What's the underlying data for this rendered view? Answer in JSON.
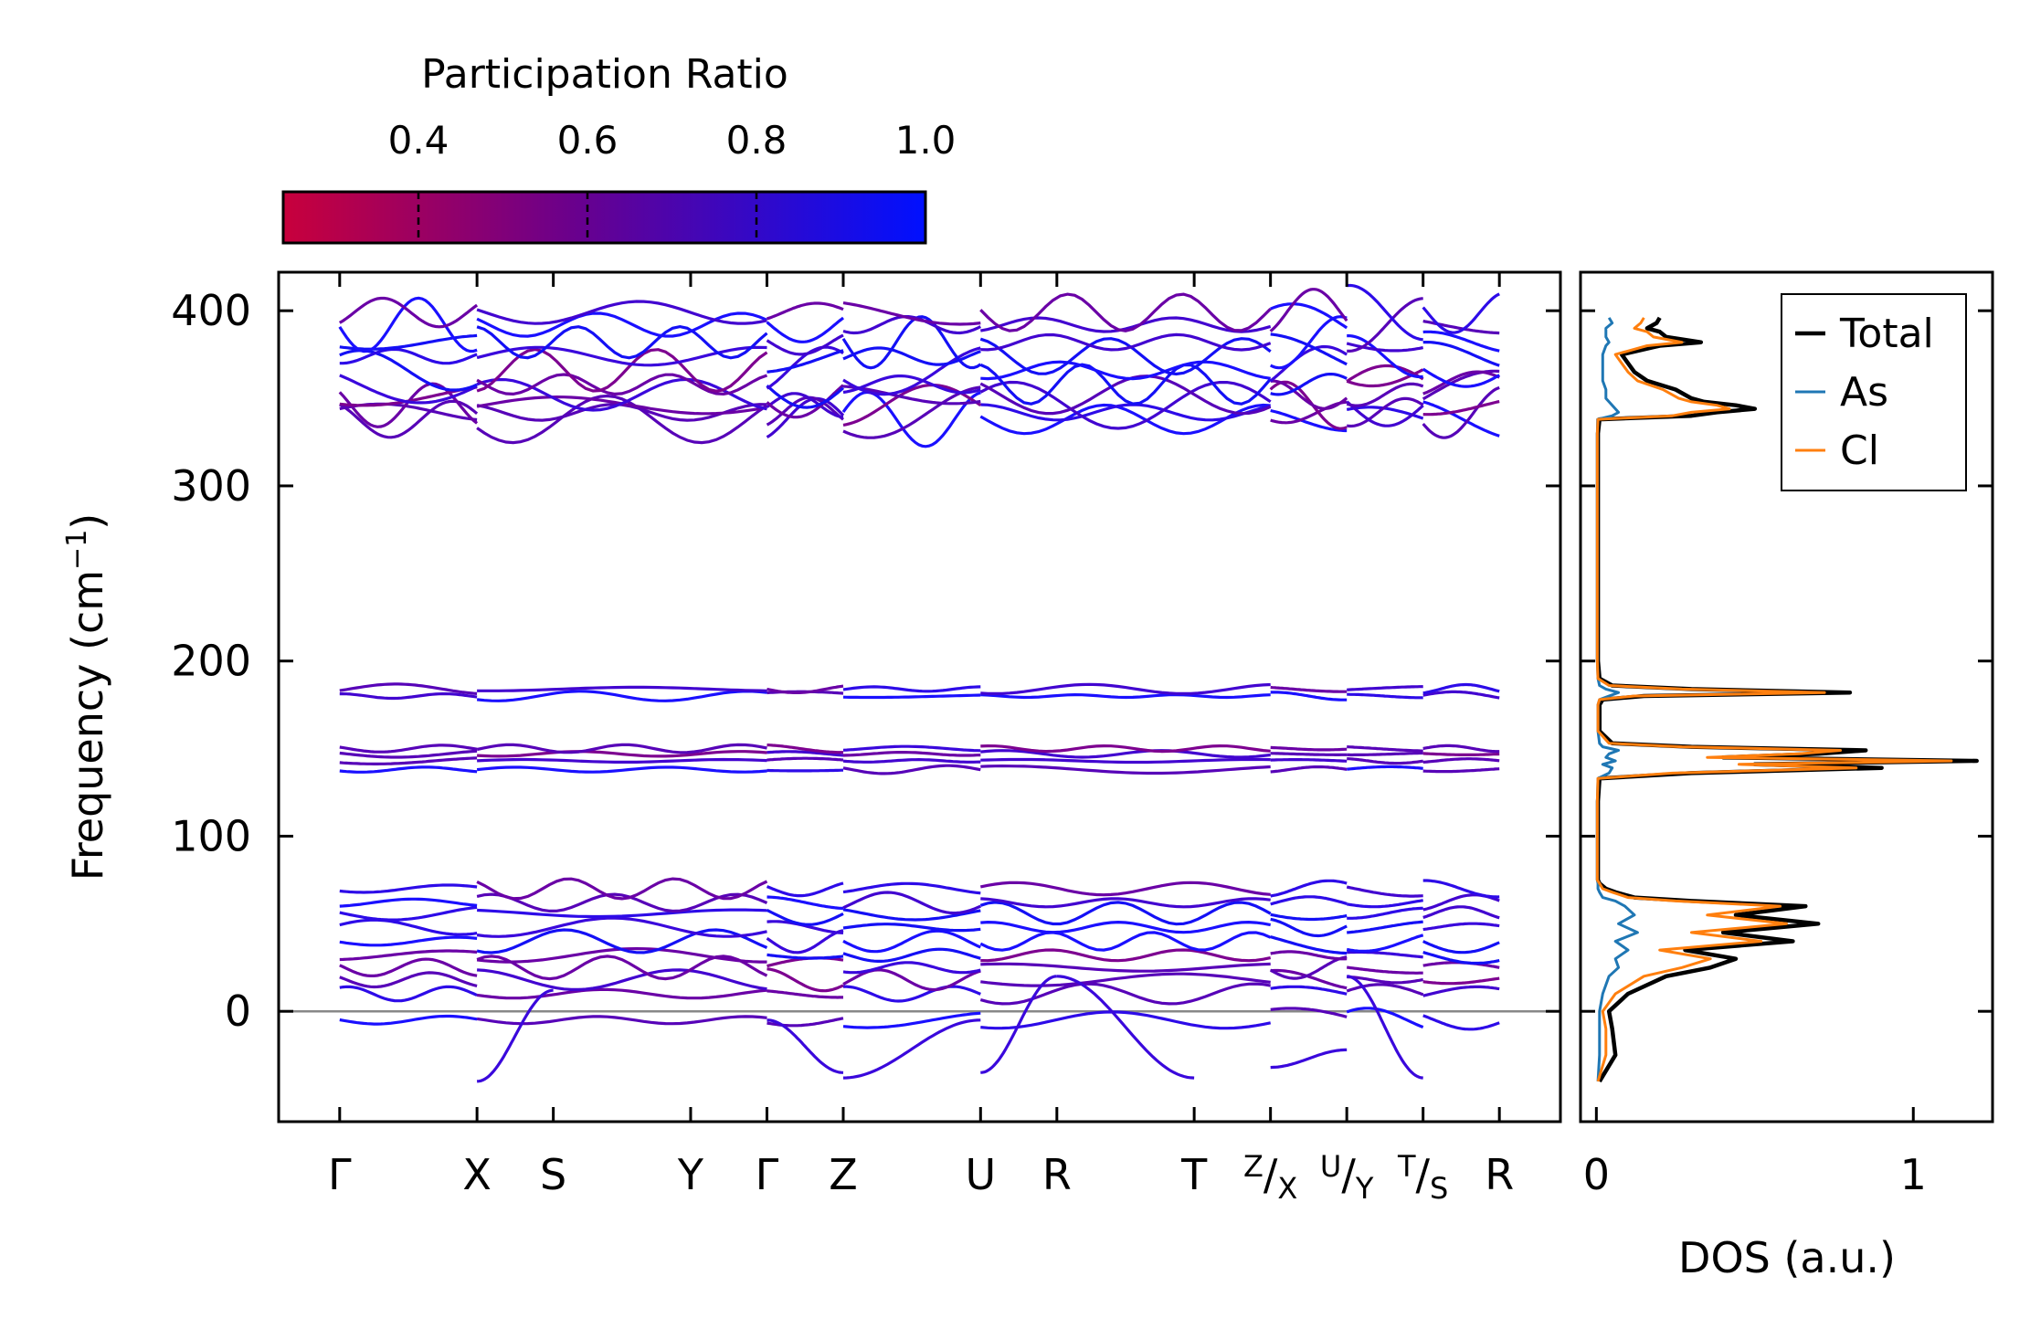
{
  "chart_data": [
    {
      "type": "colorbar",
      "title": "Participation Ratio",
      "range": [
        0.24,
        1.0
      ],
      "tick_values": [
        0.4,
        0.6,
        0.8,
        1.0
      ],
      "tick_labels": [
        "0.4",
        "0.6",
        "0.8",
        "1.0"
      ],
      "colors": {
        "low": "#c8003c",
        "mid": "#6a008c",
        "high": "#0010ff"
      }
    },
    {
      "type": "line",
      "title": "",
      "ylabel_main": "Frequency (cm",
      "ylabel_sup": "−1",
      "ylabel_close": ")",
      "ylim": [
        -63,
        422
      ],
      "y_ticks": [
        0,
        100,
        200,
        300,
        400
      ],
      "y_tick_labels": [
        "0",
        "100",
        "200",
        "300",
        "400"
      ],
      "xlim": [
        -0.8,
        16.0
      ],
      "k_points": [
        {
          "x": 0.0,
          "label": "Γ"
        },
        {
          "x": 1.8,
          "label": "X"
        },
        {
          "x": 2.8,
          "label": "S"
        },
        {
          "x": 4.6,
          "label": "Y"
        },
        {
          "x": 5.6,
          "label": "Γ"
        },
        {
          "x": 6.6,
          "label": "Z"
        },
        {
          "x": 8.4,
          "label": "U"
        },
        {
          "x": 9.4,
          "label": "R"
        },
        {
          "x": 11.2,
          "label": "T"
        },
        {
          "x": 12.2,
          "label": ""
        },
        {
          "x": 13.2,
          "label": ""
        },
        {
          "x": 14.2,
          "label": ""
        },
        {
          "x": 15.2,
          "label": "R"
        }
      ],
      "compound_labels": [
        {
          "x": 12.2,
          "top": "Z",
          "bottom": "X"
        },
        {
          "x": 13.2,
          "top": "U",
          "bottom": "Y"
        },
        {
          "x": 14.2,
          "top": "T",
          "bottom": "S"
        }
      ],
      "segment_breaks": [
        1.8,
        5.6,
        6.6,
        8.4,
        12.2,
        13.2,
        14.2
      ],
      "zero_line": 0,
      "band_groups": {
        "low": [
          -5,
          10,
          18,
          25,
          32,
          40,
          48,
          56,
          62,
          70
        ],
        "mid": [
          138,
          143,
          147,
          150
        ],
        "mid_upper": [
          180,
          184
        ],
        "high": [
          338,
          342,
          346,
          352,
          358,
          366,
          374,
          382,
          392,
          399
        ]
      }
    },
    {
      "type": "line",
      "title": "",
      "xlabel": "DOS (a.u.)",
      "xlim": [
        -0.05,
        1.25
      ],
      "x_ticks": [
        0,
        1
      ],
      "x_tick_labels": [
        "0",
        "1"
      ],
      "ylim": [
        -63,
        422
      ],
      "legend_position": "top-right",
      "series": [
        {
          "name": "Total",
          "color": "#000000",
          "y": [
            -40,
            -25,
            -10,
            0,
            10,
            20,
            25,
            30,
            35,
            40,
            45,
            50,
            55,
            60,
            63,
            65,
            68,
            70,
            73,
            75,
            80,
            100,
            120,
            133,
            136,
            139,
            141,
            143,
            145,
            147,
            149,
            151,
            153,
            160,
            170,
            175,
            178,
            180,
            182,
            184,
            186,
            190,
            200,
            250,
            300,
            330,
            338,
            340,
            342,
            344,
            346,
            348,
            350,
            355,
            360,
            365,
            370,
            375,
            380,
            382,
            385,
            388,
            390,
            393,
            396
          ],
          "values": [
            0.01,
            0.06,
            0.05,
            0.04,
            0.1,
            0.22,
            0.36,
            0.44,
            0.28,
            0.62,
            0.4,
            0.7,
            0.44,
            0.66,
            0.3,
            0.12,
            0.06,
            0.03,
            0.01,
            0.005,
            0.005,
            0.005,
            0.005,
            0.01,
            0.3,
            0.9,
            0.5,
            1.2,
            0.4,
            0.7,
            0.85,
            0.3,
            0.05,
            0.01,
            0.01,
            0.01,
            0.02,
            0.15,
            0.8,
            0.3,
            0.05,
            0.01,
            0.005,
            0.005,
            0.005,
            0.005,
            0.01,
            0.3,
            0.38,
            0.5,
            0.44,
            0.34,
            0.3,
            0.25,
            0.16,
            0.12,
            0.1,
            0.08,
            0.2,
            0.33,
            0.22,
            0.2,
            0.16,
            0.19,
            0.2
          ]
        },
        {
          "name": "As",
          "color": "#1f77b4",
          "y": [
            -40,
            -25,
            -10,
            0,
            10,
            20,
            25,
            30,
            35,
            40,
            45,
            50,
            55,
            60,
            63,
            65,
            68,
            70,
            73,
            75,
            80,
            100,
            120,
            133,
            136,
            139,
            141,
            143,
            145,
            147,
            149,
            151,
            153,
            160,
            170,
            175,
            178,
            180,
            182,
            184,
            186,
            190,
            200,
            250,
            300,
            330,
            338,
            340,
            342,
            344,
            346,
            348,
            350,
            355,
            360,
            365,
            370,
            375,
            380,
            382,
            385,
            388,
            390,
            393,
            396
          ],
          "values": [
            0.005,
            0.01,
            0.01,
            0.01,
            0.02,
            0.04,
            0.07,
            0.06,
            0.1,
            0.06,
            0.13,
            0.07,
            0.12,
            0.09,
            0.06,
            0.02,
            0.01,
            0.005,
            0.005,
            0.003,
            0.003,
            0.003,
            0.003,
            0.005,
            0.04,
            0.05,
            0.02,
            0.06,
            0.03,
            0.04,
            0.07,
            0.02,
            0.01,
            0.005,
            0.005,
            0.005,
            0.01,
            0.04,
            0.07,
            0.03,
            0.01,
            0.005,
            0.003,
            0.003,
            0.003,
            0.003,
            0.004,
            0.05,
            0.07,
            0.06,
            0.05,
            0.04,
            0.03,
            0.03,
            0.02,
            0.02,
            0.02,
            0.02,
            0.03,
            0.04,
            0.03,
            0.03,
            0.03,
            0.05,
            0.04
          ]
        },
        {
          "name": "Cl",
          "color": "#ff7f0e",
          "y": [
            -40,
            -25,
            -10,
            0,
            10,
            20,
            25,
            30,
            35,
            40,
            45,
            50,
            55,
            60,
            63,
            65,
            68,
            70,
            73,
            75,
            80,
            100,
            120,
            133,
            136,
            139,
            141,
            143,
            145,
            147,
            149,
            151,
            153,
            160,
            170,
            175,
            178,
            180,
            182,
            184,
            186,
            190,
            200,
            250,
            300,
            330,
            338,
            340,
            342,
            344,
            346,
            348,
            350,
            355,
            360,
            365,
            370,
            375,
            380,
            382,
            385,
            388,
            390,
            393,
            396
          ],
          "values": [
            0.005,
            0.03,
            0.03,
            0.02,
            0.06,
            0.15,
            0.27,
            0.36,
            0.2,
            0.52,
            0.3,
            0.6,
            0.35,
            0.58,
            0.25,
            0.1,
            0.05,
            0.02,
            0.01,
            0.003,
            0.003,
            0.003,
            0.003,
            0.005,
            0.24,
            0.82,
            0.45,
            1.12,
            0.35,
            0.64,
            0.77,
            0.27,
            0.04,
            0.005,
            0.005,
            0.005,
            0.01,
            0.12,
            0.72,
            0.27,
            0.04,
            0.005,
            0.003,
            0.003,
            0.003,
            0.003,
            0.005,
            0.24,
            0.3,
            0.42,
            0.38,
            0.3,
            0.26,
            0.21,
            0.13,
            0.1,
            0.08,
            0.06,
            0.16,
            0.27,
            0.18,
            0.16,
            0.12,
            0.14,
            0.15
          ]
        }
      ]
    }
  ]
}
